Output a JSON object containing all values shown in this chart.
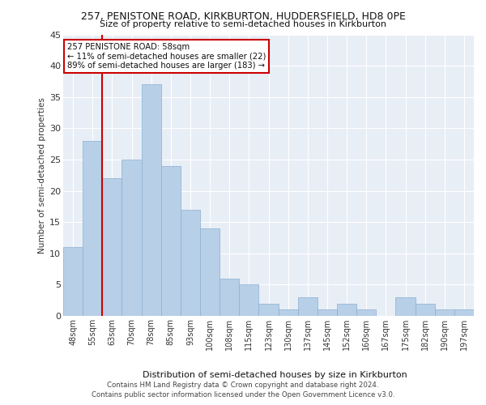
{
  "title1": "257, PENISTONE ROAD, KIRKBURTON, HUDDERSFIELD, HD8 0PE",
  "title2": "Size of property relative to semi-detached houses in Kirkburton",
  "xlabel": "Distribution of semi-detached houses by size in Kirkburton",
  "ylabel": "Number of semi-detached properties",
  "annotation_title": "257 PENISTONE ROAD: 58sqm",
  "annotation_line1": "← 11% of semi-detached houses are smaller (22)",
  "annotation_line2": "89% of semi-detached houses are larger (183) →",
  "footer1": "Contains HM Land Registry data © Crown copyright and database right 2024.",
  "footer2": "Contains public sector information licensed under the Open Government Licence v3.0.",
  "bar_labels": [
    "48sqm",
    "55sqm",
    "63sqm",
    "70sqm",
    "78sqm",
    "85sqm",
    "93sqm",
    "100sqm",
    "108sqm",
    "115sqm",
    "123sqm",
    "130sqm",
    "137sqm",
    "145sqm",
    "152sqm",
    "160sqm",
    "167sqm",
    "175sqm",
    "182sqm",
    "190sqm",
    "197sqm"
  ],
  "bar_values": [
    11,
    28,
    22,
    25,
    37,
    24,
    17,
    14,
    6,
    5,
    2,
    1,
    3,
    1,
    2,
    1,
    0,
    3,
    2,
    1,
    1
  ],
  "bar_color": "#b8cfe8",
  "bar_edge_color": "#8ab0d0",
  "vline_color": "#cc0000",
  "ylim": [
    0,
    45
  ],
  "yticks": [
    0,
    5,
    10,
    15,
    20,
    25,
    30,
    35,
    40,
    45
  ],
  "plot_bg_color": "#e8eef6",
  "annotation_box_color": "#ffffff",
  "annotation_border_color": "#cc0000",
  "grid_color": "#ffffff"
}
